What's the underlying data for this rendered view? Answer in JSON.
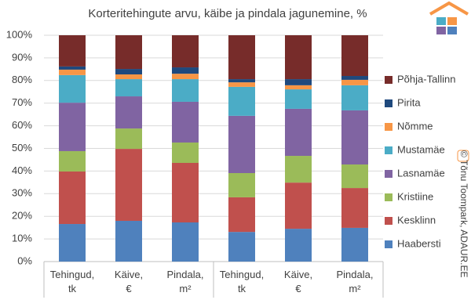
{
  "chart_data": {
    "type": "stacked_bar",
    "title": "Korteritehingute arvu, käibe ja pindala jagunemine, %",
    "categories": [
      "Tehingud, tk",
      "Käive, €",
      "Pindala, m²",
      "Tehingud, tk",
      "Käive, €",
      "Pindala, m²"
    ],
    "series": [
      {
        "name": "Haabersti",
        "color": "#4f81bd",
        "values": [
          16.6,
          18.0,
          17.3,
          13.1,
          14.5,
          14.9
        ]
      },
      {
        "name": "Kesklinn",
        "color": "#c0504d",
        "values": [
          23.2,
          31.8,
          26.3,
          15.3,
          20.4,
          17.6
        ]
      },
      {
        "name": "Kristiine",
        "color": "#9bbb59",
        "values": [
          9.0,
          9.0,
          9.0,
          10.7,
          11.8,
          10.4
        ]
      },
      {
        "name": "Lasnamäe",
        "color": "#8064a2",
        "values": [
          21.4,
          14.2,
          18.0,
          25.3,
          20.8,
          23.9
        ]
      },
      {
        "name": "Mustamäe",
        "color": "#4bacc6",
        "values": [
          12.2,
          7.6,
          10.0,
          12.8,
          8.6,
          11.1
        ]
      },
      {
        "name": "Nõmme",
        "color": "#f79646",
        "values": [
          2.4,
          2.1,
          2.4,
          2.0,
          1.8,
          2.4
        ]
      },
      {
        "name": "Pirita",
        "color": "#1f497d",
        "values": [
          1.4,
          2.4,
          2.8,
          1.4,
          2.7,
          1.7
        ]
      },
      {
        "name": "Põhja-Tallinn",
        "color": "#772c2a",
        "values": [
          13.8,
          14.9,
          14.2,
          19.4,
          19.4,
          18.0
        ]
      }
    ],
    "ylim": [
      0,
      100
    ],
    "yticks": [
      {
        "value": 0,
        "label": "0%"
      },
      {
        "value": 10,
        "label": "10%"
      },
      {
        "value": 20,
        "label": "20%"
      },
      {
        "value": 30,
        "label": "30%"
      },
      {
        "value": 40,
        "label": "40%"
      },
      {
        "value": 50,
        "label": "50%"
      },
      {
        "value": 60,
        "label": "60%"
      },
      {
        "value": 70,
        "label": "70%"
      },
      {
        "value": 80,
        "label": "80%"
      },
      {
        "value": 90,
        "label": "90%"
      },
      {
        "value": 100,
        "label": "100%"
      }
    ],
    "grid": true,
    "legend": "right",
    "watermark": "© Tõnu Toompark, ADAUR.EE"
  }
}
